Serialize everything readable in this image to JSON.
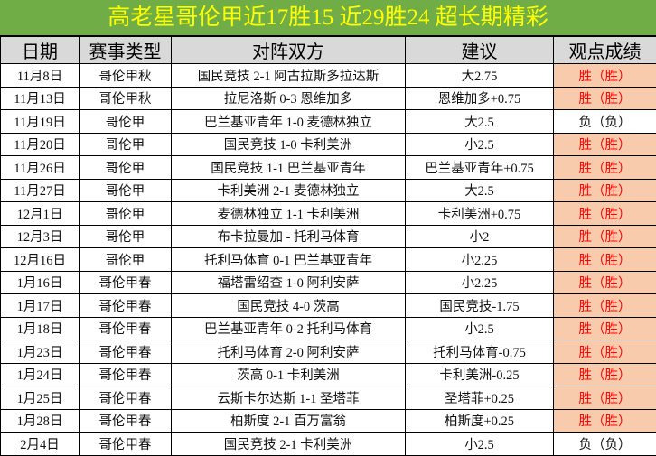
{
  "title": "高老星哥伦甲近17胜15  近29胜24  超长期精彩",
  "colors": {
    "title_bg": "#70ad47",
    "title_text": "#ffff00",
    "header_bg": "#d9d9d9",
    "win_bg": "#f8cbad",
    "win_text": "#ff0000"
  },
  "headers": [
    "日期",
    "赛事类型",
    "对阵双方",
    "建议",
    "观点成绩"
  ],
  "rows": [
    {
      "date": "11月8日",
      "league": "哥伦甲秋",
      "match": "国民竞技 2-1 阿古拉斯多拉达斯",
      "tip": "大2.75",
      "result": "胜（胜）",
      "win": true
    },
    {
      "date": "11月13日",
      "league": "哥伦甲秋",
      "match": "拉尼洛斯 0-3 恩维加多",
      "tip": "恩维加多+0.75",
      "result": "胜（胜）",
      "win": true
    },
    {
      "date": "11月19日",
      "league": "哥伦甲",
      "match": "巴兰基亚青年 1-0 麦德林独立",
      "tip": "大2.5",
      "result": "负（负）",
      "win": false
    },
    {
      "date": "11月20日",
      "league": "哥伦甲",
      "match": "国民竞技 1-0 卡利美洲",
      "tip": "小2.5",
      "result": "胜（胜）",
      "win": true
    },
    {
      "date": "11月26日",
      "league": "哥伦甲",
      "match": "国民竞技 1-1 巴兰基亚青年",
      "tip": "巴兰基亚青年+0.75",
      "result": "胜（胜）",
      "win": true
    },
    {
      "date": "11月27日",
      "league": "哥伦甲",
      "match": "卡利美洲 2-1 麦德林独立",
      "tip": "大2.5",
      "result": "胜（胜）",
      "win": true
    },
    {
      "date": "12月1日",
      "league": "哥伦甲",
      "match": "麦德林独立 1-1 卡利美洲",
      "tip": "卡利美洲+0.75",
      "result": "胜（胜）",
      "win": true
    },
    {
      "date": "12月3日",
      "league": "哥伦甲",
      "match": "布卡拉曼加 - 托利马体育",
      "tip": "小2",
      "result": "胜（胜）",
      "win": true
    },
    {
      "date": "12月16日",
      "league": "哥伦甲",
      "match": "托利马体育 0-1 巴兰基亚青年",
      "tip": "小2.25",
      "result": "胜（胜）",
      "win": true
    },
    {
      "date": "1月16日",
      "league": "哥伦甲春",
      "match": "福塔雷绍查 1-0 阿利安萨",
      "tip": "小2.25",
      "result": "胜（胜）",
      "win": true
    },
    {
      "date": "1月17日",
      "league": "哥伦甲春",
      "match": "国民竞技 4-0 茨高",
      "tip": "国民竞技-1.75",
      "result": "胜（胜）",
      "win": true
    },
    {
      "date": "1月18日",
      "league": "哥伦甲春",
      "match": "巴兰基亚青年 0-2 托利马体育",
      "tip": "小2.5",
      "result": "胜（胜）",
      "win": true
    },
    {
      "date": "1月23日",
      "league": "哥伦甲春",
      "match": "托利马体育 2-0 阿利安萨",
      "tip": "托利马体育-0.75",
      "result": "胜（胜）",
      "win": true
    },
    {
      "date": "1月24日",
      "league": "哥伦甲春",
      "match": "茨高 0-1 卡利美洲",
      "tip": "卡利美洲-0.25",
      "result": "胜（胜）",
      "win": true
    },
    {
      "date": "1月25日",
      "league": "哥伦甲春",
      "match": "云斯卡尔达斯 1-1 圣塔菲",
      "tip": "圣塔菲+0.25",
      "result": "胜（胜）",
      "win": true
    },
    {
      "date": "1月28日",
      "league": "哥伦甲春",
      "match": "柏斯度 2-1 百万富翁",
      "tip": "柏斯度+0.25",
      "result": "胜（胜）",
      "win": true
    },
    {
      "date": "2月4日",
      "league": "哥伦甲春",
      "match": "国民竞技 2-1 卡利美洲",
      "tip": "小2.5",
      "result": "负（负）",
      "win": false
    }
  ]
}
